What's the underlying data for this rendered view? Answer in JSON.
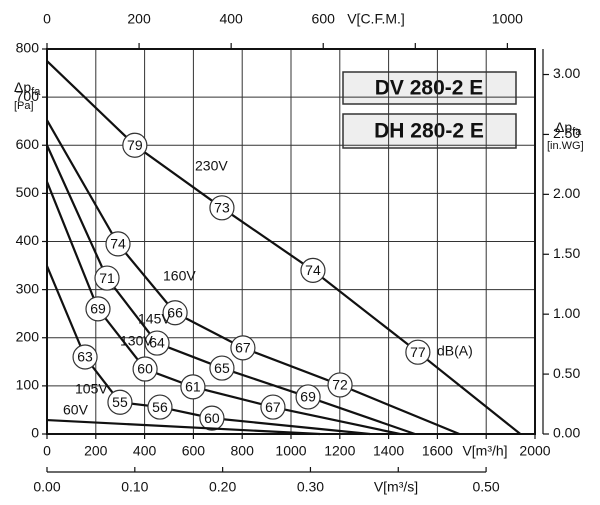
{
  "chart_data": {
    "type": "line",
    "model_labels": [
      "DV 280-2 E",
      "DH 280-2 E"
    ],
    "y_label": "Δp",
    "y_label_sub": "fa",
    "y_label_unit": "[Pa]",
    "y2_label_unit": "[in.WG]",
    "x_label": "V[m³/h]",
    "x2_label": "V[m³/s]",
    "x3_label": "V[C.F.M.]",
    "unit_label": "dB(A)",
    "grid": true,
    "color": "#111111",
    "xlim": [
      0,
      2000
    ],
    "xticks": [
      0,
      200,
      400,
      600,
      800,
      1000,
      1200,
      1400,
      1600,
      {
        "value": 1800,
        "label": null
      },
      2000
    ],
    "ylim": [
      0,
      800
    ],
    "yticks": [
      0,
      100,
      200,
      300,
      400,
      500,
      600,
      700,
      800
    ],
    "y2lim": [
      0,
      3.213
    ],
    "y2ticks": [
      {
        "value": 0,
        "label": "0.00"
      },
      {
        "value": 0.5,
        "label": "0.50"
      },
      {
        "value": 1,
        "label": "1.00"
      },
      {
        "value": 1.5,
        "label": "1.50"
      },
      {
        "value": 2,
        "label": "2.00"
      },
      {
        "value": 2.5,
        "label": "2.50"
      },
      {
        "value": 3,
        "label": "3.00"
      }
    ],
    "x2lim": [
      0,
      0.5557
    ],
    "x2ticks": [
      {
        "value": 0,
        "label": "0.00"
      },
      {
        "value": 0.1,
        "label": "0.10"
      },
      {
        "value": 0.2,
        "label": "0.20"
      },
      {
        "value": 0.3,
        "label": "0.30"
      },
      {
        "value": 0.4,
        "label": null
      },
      {
        "value": 0.5,
        "label": "0.50"
      }
    ],
    "x3lim": [
      0,
      1060
    ],
    "x3ticks": [
      0,
      200,
      400,
      600,
      {
        "value": 800,
        "label": null
      },
      1000
    ],
    "series": [
      {
        "name": "230V",
        "x": [
          0,
          360,
          717,
          1090,
          1520,
          1940
        ],
        "values": [
          775,
          600,
          470,
          340,
          170,
          0
        ],
        "db": [
          null,
          79,
          73,
          74,
          77,
          null
        ]
      },
      {
        "name": "160V",
        "x": [
          0,
          291,
          525,
          803,
          1201,
          1690
        ],
        "values": [
          652,
          395,
          252,
          179,
          102,
          0
        ],
        "db": [
          null,
          74,
          66,
          67,
          72,
          null
        ]
      },
      {
        "name": "145V",
        "x": [
          0,
          246,
          451,
          717,
          1070,
          1508
        ],
        "values": [
          600,
          324,
          189,
          137,
          77,
          0
        ],
        "db": [
          null,
          71,
          64,
          65,
          69,
          null
        ]
      },
      {
        "name": "130V",
        "x": [
          0,
          209,
          402,
          598,
          926,
          1447
        ],
        "values": [
          524,
          260,
          135,
          98,
          56,
          0
        ],
        "db": [
          null,
          69,
          60,
          61,
          67,
          null
        ]
      },
      {
        "name": "105V",
        "x": [
          0,
          156,
          299,
          463,
          676,
          1324
        ],
        "values": [
          349,
          160,
          66,
          56,
          33,
          0
        ],
        "db": [
          null,
          63,
          55,
          56,
          60,
          null
        ]
      },
      {
        "name": "60V",
        "x": [
          0,
          1119
        ],
        "values": [
          29,
          0
        ],
        "db": [
          null,
          null
        ]
      }
    ]
  }
}
